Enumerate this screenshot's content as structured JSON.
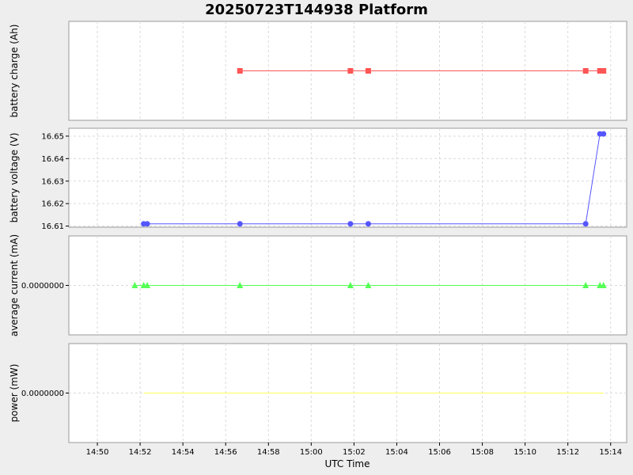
{
  "chart_data": {
    "type": "line",
    "title": "20250723T144938 Platform",
    "xlabel": "UTC Time",
    "x_ticks": [
      "14:50",
      "14:52",
      "14:54",
      "14:56",
      "14:58",
      "15:00",
      "15:02",
      "15:04",
      "15:06",
      "15:08",
      "15:10",
      "15:12",
      "15:14"
    ],
    "xlim": [
      "14:48:40",
      "15:14:45"
    ],
    "grid": true,
    "panels": [
      {
        "ylabel": "battery charge (Ah)",
        "y_ticks": [],
        "ylim": [
          0,
          2
        ],
        "color": "#ff5555",
        "marker": "square",
        "series": [
          {
            "x": "14:56:40",
            "y": 1
          },
          {
            "x": "15:01:50",
            "y": 1
          },
          {
            "x": "15:02:40",
            "y": 1
          },
          {
            "x": "15:12:50",
            "y": 1
          },
          {
            "x": "15:13:30",
            "y": 1
          },
          {
            "x": "15:13:40",
            "y": 1
          }
        ]
      },
      {
        "ylabel": "battery voltage (V)",
        "y_ticks": [
          "16.61",
          "16.62",
          "16.63",
          "16.64",
          "16.65"
        ],
        "ylim": [
          16.6095,
          16.6535
        ],
        "color": "#5555ff",
        "marker": "circle",
        "series": [
          {
            "x": "14:52:10",
            "y": 16.611
          },
          {
            "x": "14:52:20",
            "y": 16.611
          },
          {
            "x": "14:56:40",
            "y": 16.611
          },
          {
            "x": "15:01:50",
            "y": 16.611
          },
          {
            "x": "15:02:40",
            "y": 16.611
          },
          {
            "x": "15:12:50",
            "y": 16.611
          },
          {
            "x": "15:13:30",
            "y": 16.651
          },
          {
            "x": "15:13:40",
            "y": 16.651
          }
        ]
      },
      {
        "ylabel": "average current (mA)",
        "y_ticks": [
          "0.0000000"
        ],
        "ylim": [
          -1,
          1
        ],
        "color": "#55ff55",
        "marker": "triangle",
        "series": [
          {
            "x": "14:51:45",
            "y": 0
          },
          {
            "x": "14:52:10",
            "y": 0
          },
          {
            "x": "14:52:20",
            "y": 0
          },
          {
            "x": "14:56:40",
            "y": 0
          },
          {
            "x": "15:01:50",
            "y": 0
          },
          {
            "x": "15:02:40",
            "y": 0
          },
          {
            "x": "15:12:50",
            "y": 0
          },
          {
            "x": "15:13:30",
            "y": 0
          },
          {
            "x": "15:13:40",
            "y": 0
          }
        ]
      },
      {
        "ylabel": "power (mW)",
        "y_ticks": [
          "0.0000000"
        ],
        "ylim": [
          -1,
          1
        ],
        "color": "#ffff55",
        "marker": "none",
        "series": [
          {
            "x": "14:52:10",
            "y": 0
          },
          {
            "x": "15:13:40",
            "y": 0
          }
        ]
      }
    ]
  }
}
